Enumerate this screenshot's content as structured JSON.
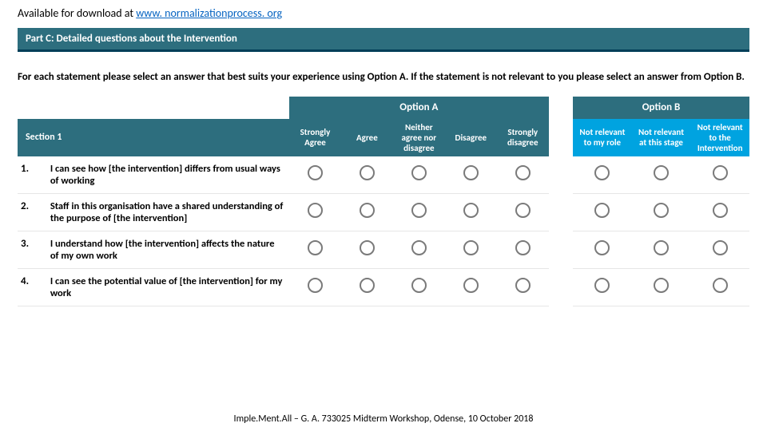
{
  "download": {
    "prefix": "Available for download at ",
    "link_text": "www. normalizationprocess. org"
  },
  "part_banner": "Part C: Detailed questions about the Intervention",
  "instructions": "For each statement please select an answer that best suits your experience using Option A. If the statement is not relevant to you please select an answer from Option B.",
  "options": {
    "optionA_label": "Option A",
    "optionB_label": "Option B"
  },
  "headers": {
    "section": "Section 1",
    "optionA_cols": [
      "Strongly Agree",
      "Agree",
      "Neither agree nor disagree",
      "Disagree",
      "Strongly disagree"
    ],
    "optionB_cols": [
      "Not relevant to my role",
      "Not relevant at this stage",
      "Not relevant to the Intervention"
    ]
  },
  "rows": [
    {
      "num": "1.",
      "text": "I can see how [the intervention] differs from usual ways of working"
    },
    {
      "num": "2.",
      "text": "Staff in this organisation have a shared understanding of the purpose of [the intervention]"
    },
    {
      "num": "3.",
      "text": "I understand how [the intervention] affects the nature of my own work"
    },
    {
      "num": "4.",
      "text": "I can see the potential value of [the intervention] for my work"
    }
  ],
  "colors": {
    "teal": "#2d6e7e",
    "cyan": "#00a3e0",
    "banner_border": "#003e58",
    "radio_border": "#7a7a7a",
    "row_border": "#e6e6e6",
    "link": "#0563c1"
  },
  "footer": "Imple.Ment.All – G. A. 733025  Midterm Workshop, Odense, 10 October 2018"
}
